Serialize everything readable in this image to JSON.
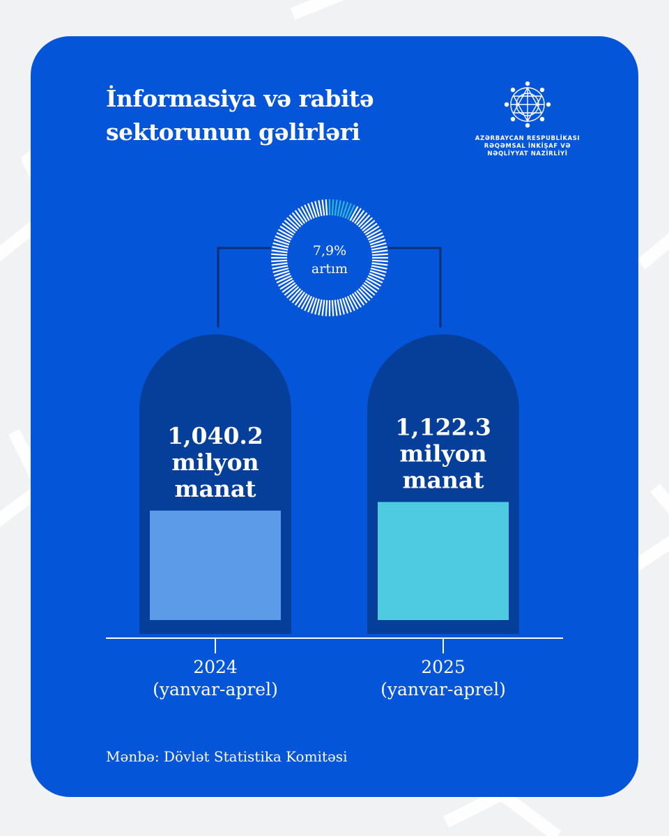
{
  "title_lines": [
    "İnformasiya və rabitə",
    "sektorunun gəlirləri"
  ],
  "logo": {
    "icon": "ministry-emblem-icon",
    "lines": [
      "AZƏRBAYCAN RESPUBLİKASI",
      "RƏQƏMSAL İNKİŞAF VƏ",
      "NƏQLİYYAT NAZİRLİYİ"
    ]
  },
  "growth": {
    "value": "7,9%",
    "label": "artım",
    "fraction": 0.079
  },
  "chart_data": {
    "type": "bar",
    "categories": [
      "2024\n(yanvar-aprel)",
      "2025\n(yanvar-aprel)"
    ],
    "values": [
      1040.2,
      1122.3
    ],
    "value_labels": [
      [
        "1,040.2",
        "milyon",
        "manat"
      ],
      [
        "1,122.3",
        "milyon",
        "manat"
      ]
    ],
    "category_lines": [
      [
        "2024",
        "(yanvar-aprel)"
      ],
      [
        "2025",
        "(yanvar-aprel)"
      ]
    ],
    "unit": "milyon manat",
    "title": "İnformasiya və rabitə sektorunun gəlirləri",
    "xlabel": "",
    "ylabel": "",
    "colors": [
      "#5b9be8",
      "#4ecbe0"
    ],
    "capsule_color": "#053f9a",
    "growth_color": "#2fb7d8"
  },
  "source": "Mənbə: Dövlət Statistika Komitəsi"
}
